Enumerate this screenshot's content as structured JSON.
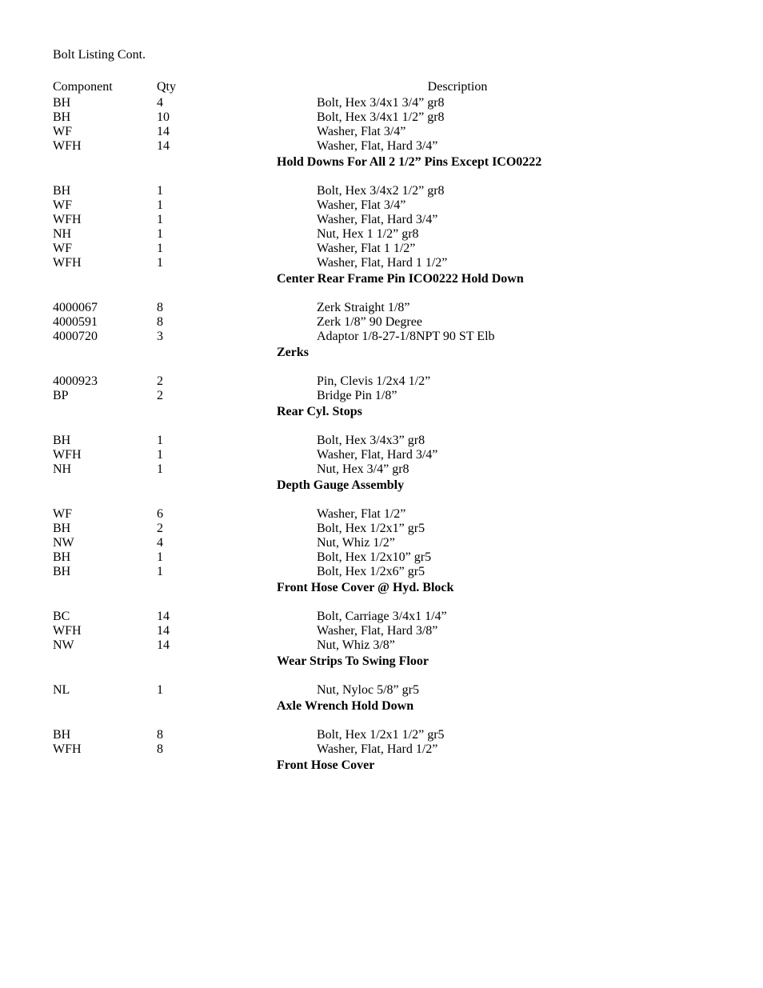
{
  "page_title": "Bolt Listing Cont.",
  "header": {
    "comp": "Component",
    "qty": "Qty",
    "desc": "Description"
  },
  "sections": [
    {
      "heading": "Hold Downs For All 2 1/2” Pins Except ICO0222",
      "rows": [
        {
          "comp": "BH",
          "qty": "4",
          "desc": "Bolt, Hex 3/4x1 3/4” gr8"
        },
        {
          "comp": "BH",
          "qty": "10",
          "desc": "Bolt, Hex 3/4x1 1/2” gr8"
        },
        {
          "comp": "WF",
          "qty": "14",
          "desc": "Washer, Flat 3/4”"
        },
        {
          "comp": "WFH",
          "qty": "14",
          "desc": "Washer, Flat, Hard 3/4”"
        }
      ]
    },
    {
      "heading": "Center Rear Frame Pin ICO0222 Hold Down",
      "rows": [
        {
          "comp": "BH",
          "qty": "1",
          "desc": "Bolt, Hex 3/4x2 1/2” gr8"
        },
        {
          "comp": "WF",
          "qty": "1",
          "desc": "Washer, Flat 3/4”"
        },
        {
          "comp": "WFH",
          "qty": "1",
          "desc": "Washer, Flat, Hard 3/4”"
        },
        {
          "comp": "NH",
          "qty": "1",
          "desc": "Nut, Hex 1 1/2” gr8"
        },
        {
          "comp": "WF",
          "qty": "1",
          "desc": "Washer, Flat 1 1/2”"
        },
        {
          "comp": "WFH",
          "qty": "1",
          "desc": "Washer, Flat, Hard 1 1/2”"
        }
      ]
    },
    {
      "heading": "Zerks",
      "rows": [
        {
          "comp": "4000067",
          "qty": "8",
          "desc": "Zerk Straight 1/8”"
        },
        {
          "comp": "4000591",
          "qty": "8",
          "desc": "Zerk 1/8” 90 Degree"
        },
        {
          "comp": "4000720",
          "qty": "3",
          "desc": "Adaptor 1/8-27-1/8NPT 90 ST Elb"
        }
      ]
    },
    {
      "heading": "Rear Cyl. Stops",
      "rows": [
        {
          "comp": "4000923",
          "qty": "2",
          "desc": "Pin, Clevis 1/2x4 1/2”"
        },
        {
          "comp": "BP",
          "qty": "2",
          "desc": "Bridge Pin 1/8”"
        }
      ]
    },
    {
      "heading": "Depth Gauge Assembly",
      "rows": [
        {
          "comp": "BH",
          "qty": "1",
          "desc": "Bolt, Hex 3/4x3” gr8"
        },
        {
          "comp": "WFH",
          "qty": "1",
          "desc": "Washer, Flat, Hard 3/4”"
        },
        {
          "comp": "NH",
          "qty": "1",
          "desc": "Nut, Hex 3/4” gr8"
        }
      ]
    },
    {
      "heading": "Front Hose Cover @ Hyd. Block",
      "rows": [
        {
          "comp": "WF",
          "qty": "6",
          "desc": "Washer, Flat 1/2”"
        },
        {
          "comp": "BH",
          "qty": "2",
          "desc": "Bolt, Hex 1/2x1” gr5"
        },
        {
          "comp": "NW",
          "qty": "4",
          "desc": "Nut, Whiz 1/2”"
        },
        {
          "comp": "BH",
          "qty": "1",
          "desc": "Bolt, Hex 1/2x10” gr5"
        },
        {
          "comp": "BH",
          "qty": "1",
          "desc": "Bolt, Hex 1/2x6” gr5"
        }
      ]
    },
    {
      "heading": "Wear Strips To Swing Floor",
      "rows": [
        {
          "comp": "BC",
          "qty": "14",
          "desc": "Bolt, Carriage 3/4x1 1/4”"
        },
        {
          "comp": "WFH",
          "qty": "14",
          "desc": "Washer, Flat, Hard 3/8”"
        },
        {
          "comp": "NW",
          "qty": "14",
          "desc": "Nut, Whiz 3/8”"
        }
      ]
    },
    {
      "heading": "Axle Wrench Hold Down",
      "rows": [
        {
          "comp": "NL",
          "qty": "1",
          "desc": "Nut, Nyloc 5/8” gr5"
        }
      ]
    },
    {
      "heading": "Front Hose Cover",
      "rows": [
        {
          "comp": "BH",
          "qty": "8",
          "desc": "Bolt, Hex 1/2x1 1/2” gr5"
        },
        {
          "comp": "WFH",
          "qty": "8",
          "desc": "Washer, Flat, Hard 1/2”"
        }
      ]
    }
  ]
}
